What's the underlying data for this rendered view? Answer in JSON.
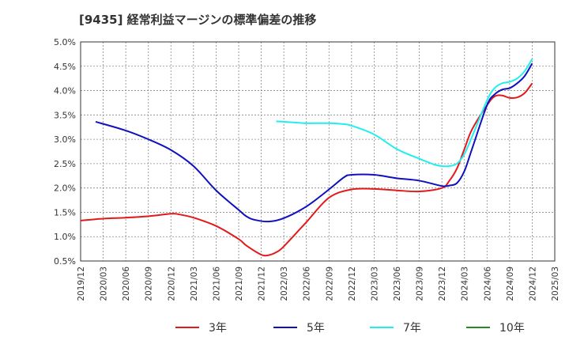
{
  "chart_data": {
    "type": "line",
    "title": "[9435]  経常利益マージンの標準偏差の推移",
    "xlabel": "",
    "ylabel": "",
    "ylim": [
      0.5,
      5.0
    ],
    "y_ticks": [
      "0.5%",
      "1.0%",
      "1.5%",
      "2.0%",
      "2.5%",
      "3.0%",
      "3.5%",
      "4.0%",
      "4.5%",
      "5.0%"
    ],
    "x_ticks": [
      "2019/12",
      "2020/03",
      "2020/06",
      "2020/09",
      "2020/12",
      "2021/03",
      "2021/06",
      "2021/09",
      "2021/12",
      "2022/03",
      "2022/06",
      "2022/09",
      "2022/12",
      "2023/03",
      "2023/06",
      "2023/09",
      "2023/12",
      "2024/03",
      "2024/06",
      "2024/09",
      "2024/12",
      "2025/03"
    ],
    "grid": true,
    "legend_position": "bottom",
    "series": [
      {
        "name": "3年",
        "color": "#e31a1c",
        "points": [
          [
            "2019/12",
            1.33
          ],
          [
            "2020/03",
            1.37
          ],
          [
            "2020/06",
            1.39
          ],
          [
            "2020/09",
            1.42
          ],
          [
            "2020/12",
            1.47
          ],
          [
            "2021/01",
            1.46
          ],
          [
            "2021/03",
            1.39
          ],
          [
            "2021/06",
            1.22
          ],
          [
            "2021/09",
            0.95
          ],
          [
            "2021/10",
            0.82
          ],
          [
            "2021/12",
            0.63
          ],
          [
            "2022/01",
            0.62
          ],
          [
            "2022/02",
            0.68
          ],
          [
            "2022/03",
            0.8
          ],
          [
            "2022/06",
            1.3
          ],
          [
            "2022/09",
            1.8
          ],
          [
            "2022/12",
            1.97
          ],
          [
            "2023/03",
            1.98
          ],
          [
            "2023/06",
            1.95
          ],
          [
            "2023/09",
            1.93
          ],
          [
            "2023/12",
            2.0
          ],
          [
            "2024/01",
            2.15
          ],
          [
            "2024/02",
            2.4
          ],
          [
            "2024/03",
            2.8
          ],
          [
            "2024/04",
            3.2
          ],
          [
            "2024/06",
            3.7
          ],
          [
            "2024/07",
            3.88
          ],
          [
            "2024/08",
            3.9
          ],
          [
            "2024/09",
            3.85
          ],
          [
            "2024/10",
            3.86
          ],
          [
            "2024/11",
            3.95
          ],
          [
            "2024/12",
            4.15
          ]
        ]
      },
      {
        "name": "5年",
        "color": "#1010c0",
        "points": [
          [
            "2020/02",
            3.36
          ],
          [
            "2020/06",
            3.18
          ],
          [
            "2020/09",
            3.0
          ],
          [
            "2020/12",
            2.78
          ],
          [
            "2021/03",
            2.45
          ],
          [
            "2021/06",
            1.95
          ],
          [
            "2021/09",
            1.55
          ],
          [
            "2021/10",
            1.42
          ],
          [
            "2021/11",
            1.35
          ],
          [
            "2022/01",
            1.31
          ],
          [
            "2022/03",
            1.38
          ],
          [
            "2022/06",
            1.62
          ],
          [
            "2022/09",
            1.97
          ],
          [
            "2022/11",
            2.22
          ],
          [
            "2022/12",
            2.27
          ],
          [
            "2023/03",
            2.27
          ],
          [
            "2023/06",
            2.2
          ],
          [
            "2023/09",
            2.15
          ],
          [
            "2023/12",
            2.04
          ],
          [
            "2024/01",
            2.05
          ],
          [
            "2024/02",
            2.1
          ],
          [
            "2024/03",
            2.35
          ],
          [
            "2024/04",
            2.8
          ],
          [
            "2024/06",
            3.7
          ],
          [
            "2024/07",
            3.92
          ],
          [
            "2024/08",
            4.02
          ],
          [
            "2024/09",
            4.05
          ],
          [
            "2024/10",
            4.15
          ],
          [
            "2024/11",
            4.3
          ],
          [
            "2024/12",
            4.56
          ]
        ]
      },
      {
        "name": "7年",
        "color": "#22eeee",
        "points": [
          [
            "2022/02",
            3.37
          ],
          [
            "2022/04",
            3.35
          ],
          [
            "2022/06",
            3.33
          ],
          [
            "2022/09",
            3.33
          ],
          [
            "2022/11",
            3.31
          ],
          [
            "2022/12",
            3.28
          ],
          [
            "2023/03",
            3.1
          ],
          [
            "2023/06",
            2.8
          ],
          [
            "2023/09",
            2.6
          ],
          [
            "2023/11",
            2.48
          ],
          [
            "2023/12",
            2.45
          ],
          [
            "2024/01",
            2.45
          ],
          [
            "2024/02",
            2.5
          ],
          [
            "2024/03",
            2.7
          ],
          [
            "2024/04",
            3.05
          ],
          [
            "2024/06",
            3.8
          ],
          [
            "2024/07",
            4.05
          ],
          [
            "2024/08",
            4.15
          ],
          [
            "2024/09",
            4.18
          ],
          [
            "2024/10",
            4.25
          ],
          [
            "2024/11",
            4.4
          ],
          [
            "2024/12",
            4.65
          ]
        ]
      },
      {
        "name": "10年",
        "color": "#228b22",
        "points": []
      }
    ]
  }
}
